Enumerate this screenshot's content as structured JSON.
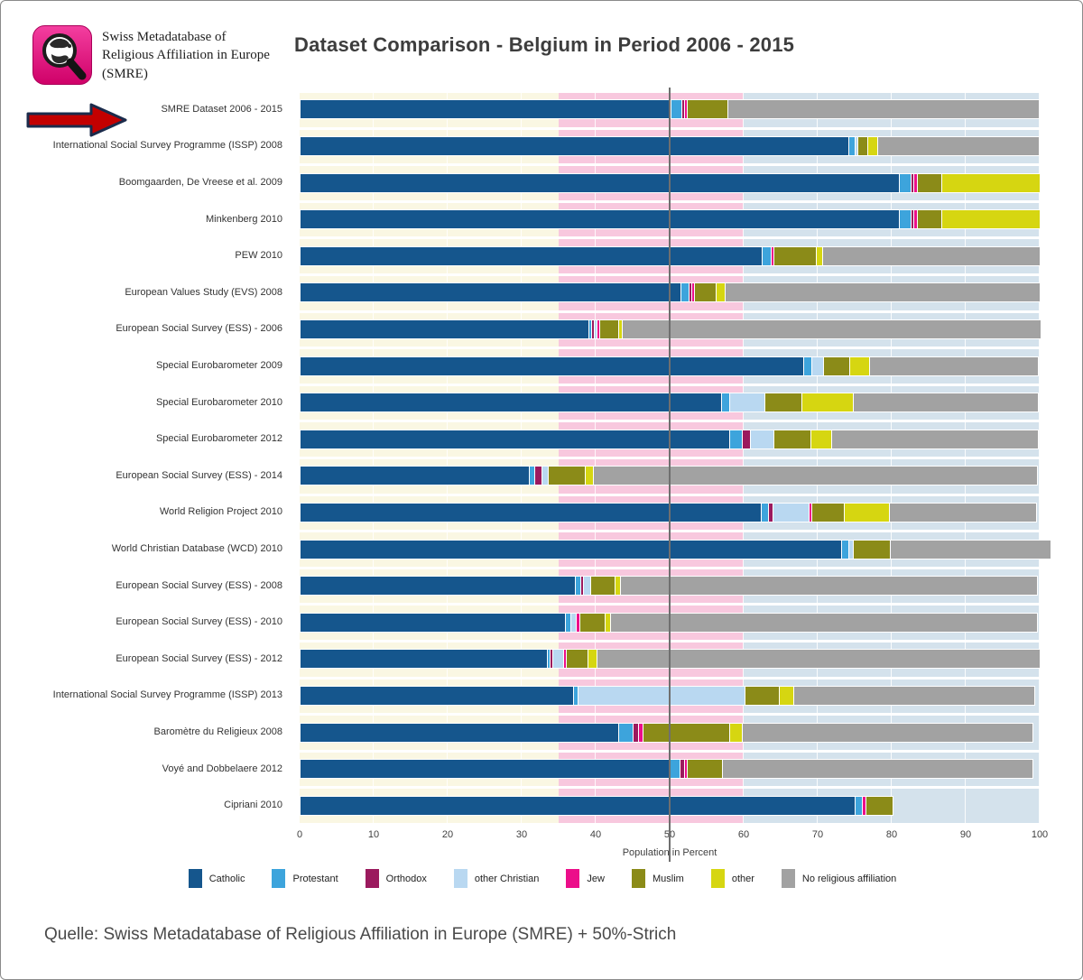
{
  "header": {
    "logo_text": "Swiss Metadatabase of Religious Affiliation in Europe (SMRE)",
    "title": "Dataset Comparison - Belgium in Period 2006 - 2015"
  },
  "chart_data": {
    "type": "bar",
    "orientation": "horizontal",
    "stacked": true,
    "title": "Dataset Comparison - Belgium in Period 2006 - 2015",
    "xlabel": "Population in Percent",
    "xlim": [
      0,
      100
    ],
    "x_ticks": [
      0,
      10,
      20,
      30,
      40,
      50,
      60,
      70,
      80,
      90,
      100
    ],
    "reference_line_x": 50,
    "grid": true,
    "legend_position": "bottom",
    "background_bands": [
      {
        "from": 0,
        "to": 35,
        "color": "#faf7e3"
      },
      {
        "from": 35,
        "to": 60,
        "color": "#f8c8de"
      },
      {
        "from": 60,
        "to": 100,
        "color": "#d4e2ec"
      }
    ],
    "categories": [
      "SMRE Dataset 2006 - 2015",
      "International Social Survey Programme (ISSP) 2008",
      "Boomgaarden, De Vreese et al. 2009",
      "Minkenberg 2010",
      "PEW 2010",
      "European Values Study (EVS) 2008",
      "European Social Survey (ESS) - 2006",
      "Special Eurobarometer 2009",
      "Special Eurobarometer 2010",
      "Special Eurobarometer 2012",
      "European Social Survey (ESS) - 2014",
      "World Religion Project 2010",
      "World Christian Database (WCD) 2010",
      "European Social Survey (ESS) - 2008",
      "European Social Survey (ESS) - 2010",
      "European Social Survey (ESS) - 2012",
      "International Social Survey Programme (ISSP) 2013",
      "Baromètre du Religieux 2008",
      "Voyé and Dobbelaere 2012",
      "Cipriani 2010"
    ],
    "series": [
      {
        "name": "Catholic",
        "color": "#15568d",
        "values": [
          50.1,
          74.1,
          81.0,
          81.0,
          62.4,
          51.5,
          39.0,
          68.1,
          57.0,
          58.1,
          31.0,
          62.3,
          73.2,
          37.2,
          35.8,
          33.4,
          37.0,
          43.0,
          49.9,
          75.0
        ]
      },
      {
        "name": "Protestant",
        "color": "#3da4dc",
        "values": [
          1.5,
          0.9,
          1.6,
          1.6,
          1.2,
          1.1,
          0.4,
          1.1,
          1.1,
          1.7,
          0.7,
          1.0,
          1.0,
          0.7,
          0.8,
          0.4,
          0.6,
          2.0,
          1.4,
          1.0
        ]
      },
      {
        "name": "Orthodox",
        "color": "#9b1a5e",
        "values": [
          0.3,
          0,
          0.3,
          0.3,
          0,
          0.2,
          0.2,
          0,
          0,
          1.0,
          1.0,
          0.6,
          0,
          0.4,
          0,
          0.4,
          0,
          0.7,
          0.6,
          0
        ]
      },
      {
        "name": "other Christian",
        "color": "#b9d8f1",
        "values": [
          0,
          0.4,
          0,
          0,
          0,
          0,
          0.4,
          1.5,
          4.7,
          3.2,
          0.8,
          4.9,
          0.5,
          1.0,
          0.7,
          1.4,
          22.5,
          0,
          0,
          0
        ]
      },
      {
        "name": "Jew",
        "color": "#ec0e8a",
        "values": [
          0.4,
          0,
          0.4,
          0.4,
          0.3,
          0.3,
          0.2,
          0,
          0,
          0,
          0,
          0.4,
          0,
          0,
          0.5,
          0.3,
          0,
          0.7,
          0.4,
          0.5
        ]
      },
      {
        "name": "Muslim",
        "color": "#8b8b18",
        "values": [
          5.5,
          1.3,
          3.4,
          3.4,
          5.8,
          2.9,
          2.5,
          3.6,
          5.0,
          5.0,
          5.0,
          4.4,
          5.0,
          3.3,
          3.4,
          3.0,
          4.7,
          11.7,
          4.8,
          3.6
        ]
      },
      {
        "name": "other",
        "color": "#d6d611",
        "values": [
          0,
          1.3,
          13.2,
          13.2,
          0.8,
          1.2,
          0.5,
          2.6,
          7.0,
          2.8,
          1.2,
          6.0,
          0,
          0.7,
          0.8,
          1.2,
          1.9,
          1.7,
          0,
          0
        ]
      },
      {
        "name": "No religious affiliation",
        "color": "#a2a2a2",
        "values": [
          42.0,
          21.9,
          0,
          0,
          29.5,
          42.6,
          56.6,
          22.9,
          24.9,
          28.0,
          60.0,
          19.9,
          21.8,
          56.4,
          57.7,
          59.9,
          32.6,
          39.2,
          41.9,
          0
        ]
      }
    ]
  },
  "footer": {
    "source": "Quelle: Swiss Metadatabase of Religious Affiliation in Europe (SMRE) + 50%-Strich"
  }
}
